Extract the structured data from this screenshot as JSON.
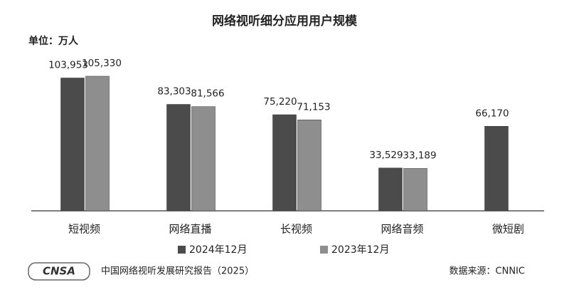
{
  "chart_data": {
    "type": "bar",
    "title": "网络视听细分应用用户规模",
    "unit_label": "单位：万人",
    "categories": [
      "短视频",
      "网络直播",
      "长视频",
      "网络音频",
      "微短剧"
    ],
    "series": [
      {
        "name": "2024年12月",
        "color": "#4b4b4b",
        "values": [
          103953,
          83303,
          75220,
          33529,
          66170
        ],
        "value_labels": [
          "103,953",
          "83,303",
          "75,220",
          "33,529",
          "66,170"
        ]
      },
      {
        "name": "2023年12月",
        "color": "#8e8e8e",
        "values": [
          105330,
          81566,
          71153,
          33189,
          null
        ],
        "value_labels": [
          "105,330",
          "81,566",
          "71,153",
          "33,189",
          null
        ]
      }
    ],
    "logo": "CNSA",
    "footer": "中国网络视听发展研究报告（2025）",
    "source": "数据来源：CNNIC"
  }
}
